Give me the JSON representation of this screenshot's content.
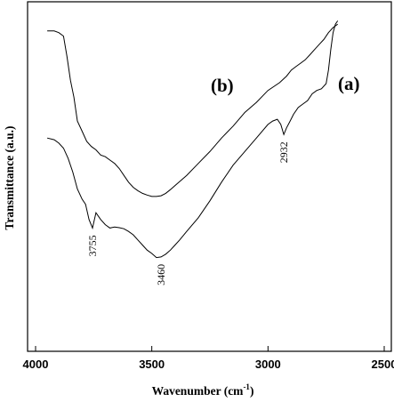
{
  "chart_data": {
    "type": "line",
    "title": "",
    "xlabel_main": "Wavenumber (cm",
    "xlabel_sup": "-1",
    "xlabel_close": ")",
    "ylabel": "Transmittance (a.u.)",
    "xlim": [
      4000,
      2500
    ],
    "x_reversed": true,
    "y_ticks_shown": false,
    "x_ticks": [
      4000,
      3500,
      3000,
      2500
    ],
    "x_tick_labels": [
      "4000",
      "3500",
      "3000",
      "2500"
    ],
    "grid": false,
    "series": [
      {
        "name": "(b)",
        "x": [
          3950,
          3920,
          3900,
          3880,
          3865,
          3850,
          3835,
          3820,
          3800,
          3780,
          3760,
          3740,
          3720,
          3700,
          3680,
          3660,
          3640,
          3620,
          3600,
          3580,
          3560,
          3540,
          3520,
          3500,
          3480,
          3460,
          3440,
          3420,
          3400,
          3380,
          3350,
          3300,
          3250,
          3200,
          3150,
          3100,
          3050,
          3000,
          2950,
          2920,
          2900,
          2880,
          2860,
          2840,
          2820,
          2800,
          2780,
          2760,
          2740,
          2720,
          2700
        ],
        "y": [
          93.5,
          93.5,
          93.0,
          92.0,
          86.0,
          79.0,
          74.0,
          67.0,
          64.0,
          61.0,
          59.5,
          58.5,
          57.0,
          56.5,
          55.5,
          54.5,
          53.0,
          51.0,
          49.0,
          47.5,
          46.5,
          45.7,
          45.2,
          44.8,
          44.8,
          45.0,
          45.7,
          46.8,
          48.0,
          49.2,
          51.0,
          54.5,
          58.0,
          62.0,
          65.5,
          69.5,
          72.5,
          76.0,
          78.3,
          80.2,
          82.0,
          83.0,
          84.0,
          85.0,
          86.5,
          88.0,
          89.5,
          91.0,
          93.0,
          94.5,
          95.5
        ]
      },
      {
        "name": "(a)",
        "x": [
          3950,
          3920,
          3900,
          3880,
          3860,
          3840,
          3820,
          3800,
          3785,
          3770,
          3755,
          3740,
          3720,
          3700,
          3680,
          3660,
          3640,
          3620,
          3600,
          3580,
          3560,
          3540,
          3520,
          3500,
          3480,
          3460,
          3440,
          3420,
          3400,
          3380,
          3350,
          3300,
          3250,
          3200,
          3150,
          3100,
          3050,
          3000,
          2980,
          2960,
          2945,
          2932,
          2920,
          2905,
          2890,
          2870,
          2850,
          2830,
          2810,
          2790,
          2770,
          2750,
          2740,
          2730,
          2720,
          2710,
          2700
        ],
        "y": [
          62.0,
          61.5,
          60.5,
          59.0,
          56.0,
          52.0,
          47.0,
          44.0,
          42.5,
          38.0,
          35.5,
          40.0,
          38.0,
          36.5,
          35.5,
          35.8,
          35.6,
          35.3,
          34.5,
          33.5,
          32.0,
          30.5,
          29.0,
          28.0,
          26.8,
          27.0,
          27.8,
          29.0,
          30.5,
          32.0,
          34.5,
          38.5,
          43.5,
          49.0,
          54.0,
          58.0,
          62.0,
          66.0,
          67.0,
          67.5,
          66.0,
          63.0,
          65.0,
          67.0,
          69.0,
          71.0,
          72.0,
          73.0,
          75.0,
          76.0,
          76.5,
          78.0,
          82.0,
          88.0,
          93.0,
          95.5,
          96.5
        ]
      }
    ],
    "annotations": [
      {
        "text": "3755",
        "x": 3755
      },
      {
        "text": "3460",
        "x": 3460
      },
      {
        "text": "2932",
        "x": 2932
      }
    ],
    "series_labels": [
      "(b)",
      "(a)"
    ]
  }
}
